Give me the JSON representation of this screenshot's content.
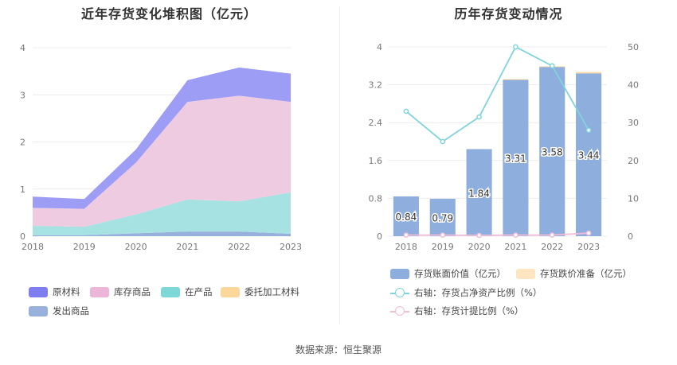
{
  "left_chart": {
    "title": "近年存货变化堆积图（亿元）",
    "legend": [
      {
        "label": "原材料",
        "color": "#9c9cf5"
      },
      {
        "label": "库存商品",
        "color": "#efc6e0"
      },
      {
        "label": "在产品",
        "color": "#8fdcdc"
      },
      {
        "label": "委托加工材料",
        "color": "#fcd79a"
      },
      {
        "label": "发出商品",
        "color": "#98b0dc"
      }
    ]
  },
  "right_chart": {
    "title": "历年存货变动情况",
    "legend": [
      {
        "label": "存货账面价值（亿元）",
        "color": "#8eaede"
      },
      {
        "label": "存货跌价准备（亿元）",
        "color": "#fde5c2"
      },
      {
        "label": "右轴：存货占净资产比例（%）",
        "color": "#80d4dc"
      },
      {
        "label": "右轴：存货计提比例（%）",
        "color": "#f0bcd8"
      }
    ]
  },
  "chart_data": [
    {
      "type": "area",
      "stacked": true,
      "title": "近年存货变化堆积图（亿元）",
      "categories": [
        "2018",
        "2019",
        "2020",
        "2021",
        "2022",
        "2023"
      ],
      "ylim": [
        0,
        4
      ],
      "yticks": [
        0,
        1,
        2,
        3,
        4
      ],
      "series": [
        {
          "name": "发出商品",
          "values": [
            0.02,
            0.02,
            0.06,
            0.1,
            0.1,
            0.05
          ]
        },
        {
          "name": "委托加工材料",
          "values": [
            0.0,
            0.0,
            0.0,
            0.0,
            0.0,
            0.0
          ]
        },
        {
          "name": "在产品",
          "values": [
            0.2,
            0.18,
            0.4,
            0.68,
            0.64,
            0.88
          ]
        },
        {
          "name": "库存商品",
          "values": [
            0.38,
            0.38,
            1.1,
            2.07,
            2.24,
            1.92
          ]
        },
        {
          "name": "原材料",
          "values": [
            0.24,
            0.21,
            0.28,
            0.46,
            0.6,
            0.6
          ]
        }
      ],
      "grid": true,
      "legend_position": "bottom"
    },
    {
      "type": "bar",
      "title": "历年存货变动情况",
      "categories": [
        "2018",
        "2019",
        "2020",
        "2021",
        "2022",
        "2023"
      ],
      "ylim": [
        0,
        4
      ],
      "yticks": [
        "0",
        "0.8",
        "1.6",
        "2.4",
        "3.2",
        "4"
      ],
      "y2lim": [
        0,
        50
      ],
      "y2ticks": [
        "0",
        "10",
        "20",
        "30",
        "40",
        "50"
      ],
      "series": [
        {
          "name": "存货账面价值（亿元）",
          "values": [
            0.84,
            0.79,
            1.84,
            3.31,
            3.58,
            3.44
          ],
          "labels": [
            "0.84",
            "0.79",
            "1.84",
            "3.31",
            "3.58",
            "3.44"
          ]
        },
        {
          "name": "存货跌价准备（亿元）",
          "values": [
            0.0,
            0.0,
            0.0,
            0.01,
            0.01,
            0.03
          ]
        },
        {
          "name": "右轴：存货占净资产比例（%）",
          "axis": "right",
          "values": [
            33,
            25,
            31.5,
            50,
            45,
            28
          ]
        },
        {
          "name": "右轴：存货计提比例（%）",
          "axis": "right",
          "values": [
            0.3,
            0.3,
            0.2,
            0.3,
            0.3,
            0.8
          ]
        }
      ],
      "grid": true,
      "legend_position": "bottom"
    }
  ],
  "footer": {
    "source": "数据来源：恒生聚源"
  }
}
